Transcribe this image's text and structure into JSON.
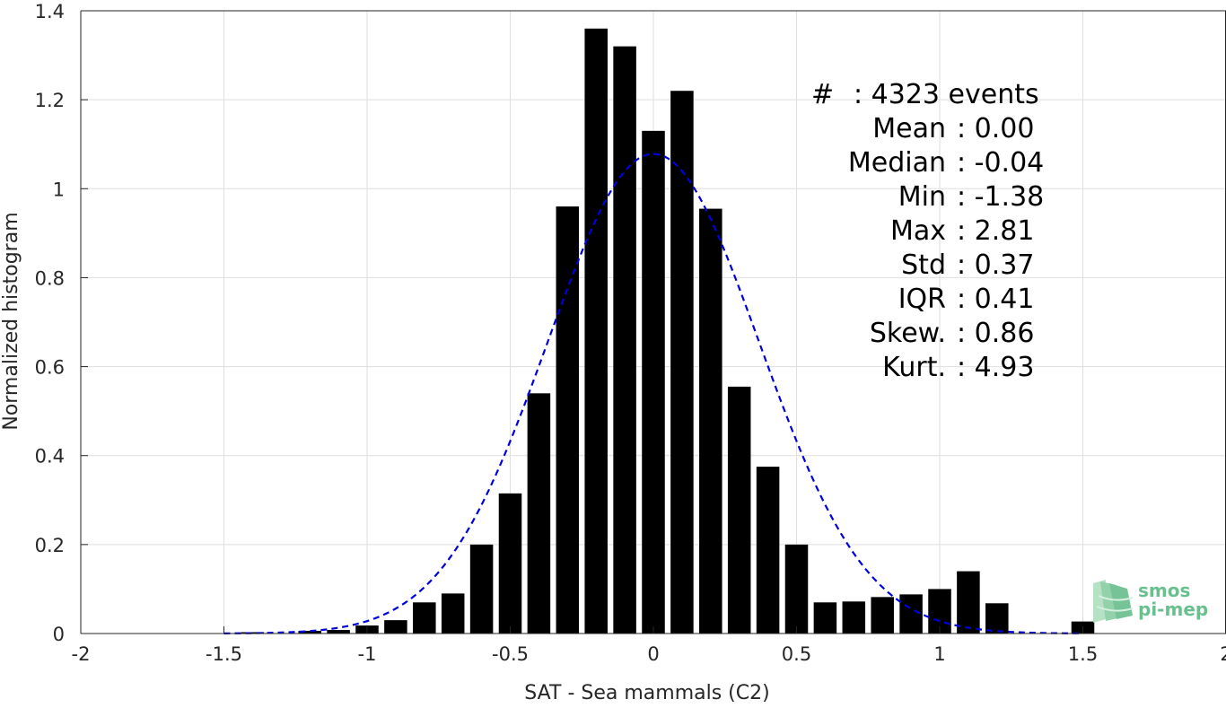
{
  "chart_data": {
    "type": "bar",
    "xlabel": "SAT - Sea mammals (C2)",
    "ylabel": "Normalized histogram",
    "xlim": [
      -2,
      2
    ],
    "ylim": [
      0,
      1.4
    ],
    "xticks": [
      "-2",
      "-1.5",
      "-1",
      "-0.5",
      "0",
      "0.5",
      "1",
      "1.5",
      "2"
    ],
    "yticks": [
      "0",
      "0.2",
      "0.4",
      "0.6",
      "0.8",
      "1",
      "1.2",
      "1.4"
    ],
    "grid": true,
    "bar_color": "#000000",
    "bars": {
      "x": [
        -1.4,
        -1.2,
        -1.1,
        -1.0,
        -0.9,
        -0.8,
        -0.7,
        -0.6,
        -0.5,
        -0.4,
        -0.3,
        -0.2,
        -0.1,
        0.0,
        0.1,
        0.2,
        0.3,
        0.4,
        0.5,
        0.6,
        0.7,
        0.8,
        0.9,
        1.0,
        1.1,
        1.2,
        1.5
      ],
      "values": [
        0.003,
        0.006,
        0.008,
        0.018,
        0.03,
        0.07,
        0.09,
        0.2,
        0.315,
        0.54,
        0.96,
        1.36,
        1.32,
        1.13,
        1.22,
        0.955,
        0.555,
        0.375,
        0.2,
        0.07,
        0.072,
        0.082,
        0.088,
        0.1,
        0.14,
        0.068,
        0.027
      ]
    },
    "fit_curve": {
      "type": "normal",
      "mean": 0.0,
      "std": 0.37,
      "color": "#0000dd",
      "style": "dashed",
      "x_range": [
        -1.5,
        1.5
      ]
    },
    "stats": {
      "count_label": "#",
      "count_value": ": 4323 events",
      "lines": [
        {
          "label": "Mean",
          "value": ": 0.00"
        },
        {
          "label": "Median",
          "value": ": -0.04"
        },
        {
          "label": "Min",
          "value": ": -1.38"
        },
        {
          "label": "Max",
          "value": ": 2.81"
        },
        {
          "label": "Std",
          "value": ": 0.37"
        },
        {
          "label": "IQR",
          "value": ": 0.41"
        },
        {
          "label": "Skew.",
          "value": ": 0.86"
        },
        {
          "label": "Kurt.",
          "value": ": 4.93"
        }
      ]
    }
  },
  "logo": {
    "line1": "smos",
    "line2": "pi-mep",
    "color": "#6abf8f"
  }
}
